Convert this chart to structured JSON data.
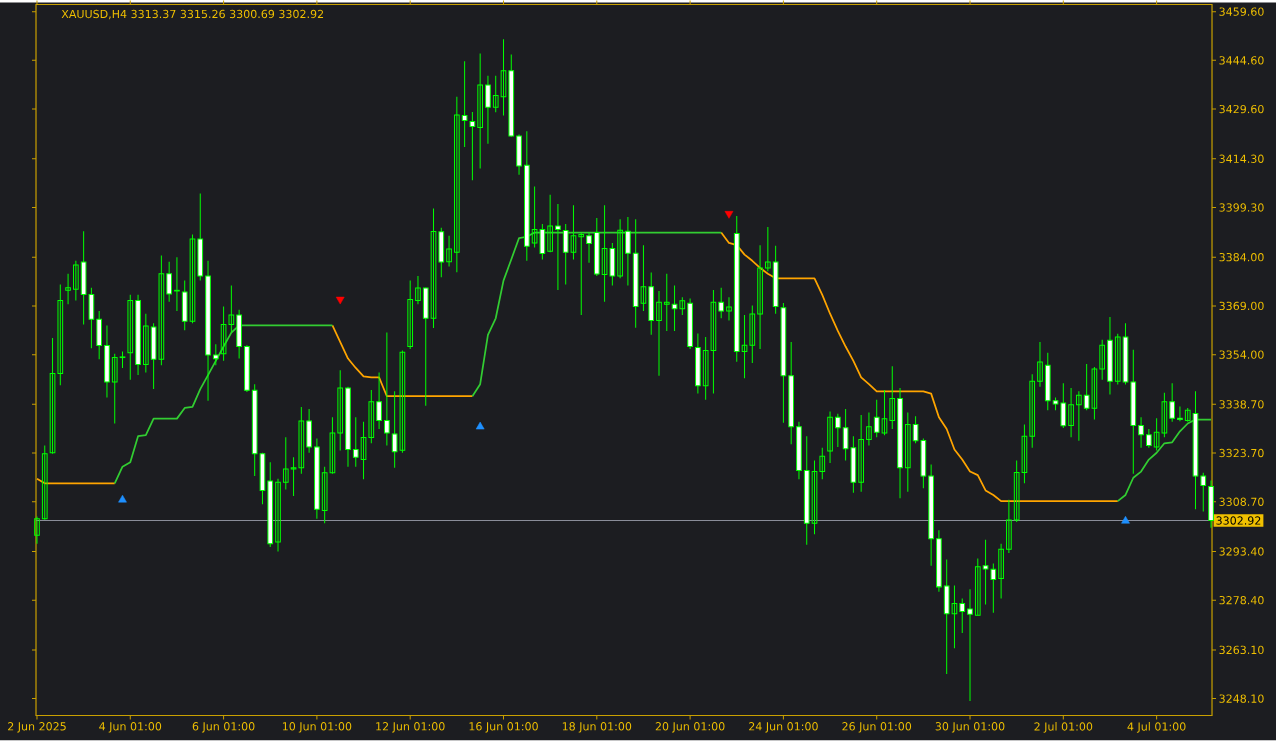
{
  "chart_data": {
    "type": "candlestick",
    "title": "XAUUSD,H4 3313.37 3315.26 3300.69 3302.92",
    "color": "#00ff00",
    "categories": [
      "2 Jun 2025",
      null,
      null,
      null,
      null,
      null,
      null,
      null,
      null,
      null,
      null,
      null,
      "4 Jun 01:00",
      null,
      null,
      null,
      null,
      null,
      null,
      null,
      null,
      null,
      null,
      null,
      "6 Jun 01:00",
      null,
      null,
      null,
      null,
      null,
      null,
      null,
      null,
      null,
      null,
      null,
      "10 Jun 01:00",
      null,
      null,
      null,
      null,
      null,
      null,
      null,
      null,
      null,
      null,
      null,
      "12 Jun 01:00",
      null,
      null,
      null,
      null,
      null,
      null,
      null,
      null,
      null,
      null,
      null,
      "16 Jun 01:00",
      null,
      null,
      null,
      null,
      null,
      null,
      null,
      null,
      null,
      null,
      null,
      "18 Jun 01:00",
      null,
      null,
      null,
      null,
      null,
      null,
      null,
      null,
      null,
      null,
      null,
      "20 Jun 01:00",
      null,
      null,
      null,
      null,
      null,
      null,
      null,
      null,
      null,
      null,
      null,
      "24 Jun 01:00",
      null,
      null,
      null,
      null,
      null,
      null,
      null,
      null,
      null,
      null,
      null,
      "26 Jun 01:00",
      null,
      null,
      null,
      null,
      null,
      null,
      null,
      null,
      null,
      null,
      null,
      "30 Jun 01:00",
      null,
      null,
      null,
      null,
      null,
      null,
      null,
      null,
      null,
      null,
      null,
      "2 Jul 01:00",
      null,
      null,
      null,
      null,
      null,
      null,
      null,
      null,
      null,
      null,
      null,
      "4 Jul 01:00",
      null,
      null,
      null,
      null,
      null,
      null,
      null
    ],
    "ohlc": [
      [
        3298.4,
        3304.2,
        3295.8,
        3303.5
      ],
      [
        3303.5,
        3326.0,
        3303.2,
        3323.5
      ],
      [
        3323.8,
        3359.1,
        3323.5,
        3348.2
      ],
      [
        3348.2,
        3375.6,
        3344.6,
        3370.7
      ],
      [
        3373.8,
        3378.9,
        3369.5,
        3374.6
      ],
      [
        3374.1,
        3382.9,
        3370.7,
        3381.6
      ],
      [
        3382.5,
        3392.0,
        3363.3,
        3372.5
      ],
      [
        3372.5,
        3374.6,
        3356.0,
        3364.9
      ],
      [
        3364.9,
        3367.4,
        3352.6,
        3356.8
      ],
      [
        3356.8,
        3363.0,
        3340.8,
        3345.6
      ],
      [
        3345.6,
        3354.3,
        3332.8,
        3353.1
      ],
      [
        3353.1,
        3355.0,
        3349.9,
        3353.3
      ],
      [
        3354.6,
        3372.4,
        3346.3,
        3370.7
      ],
      [
        3370.7,
        3372.4,
        3347.7,
        3351.0
      ],
      [
        3351.0,
        3366.6,
        3348.5,
        3362.8
      ],
      [
        3362.5,
        3363.7,
        3343.4,
        3352.6
      ],
      [
        3352.6,
        3384.5,
        3350.7,
        3378.9
      ],
      [
        3378.9,
        3382.6,
        3370.3,
        3372.7
      ],
      [
        3373.6,
        3384.0,
        3367.4,
        3373.8
      ],
      [
        3373.3,
        3376.8,
        3361.5,
        3364.3
      ],
      [
        3364.3,
        3391.0,
        3363.7,
        3389.6
      ],
      [
        3389.6,
        3403.6,
        3376.8,
        3378.2
      ],
      [
        3378.2,
        3382.9,
        3339.8,
        3353.9
      ],
      [
        3353.9,
        3357.2,
        3350.7,
        3352.7
      ],
      [
        3354.3,
        3368.8,
        3352.1,
        3363.3
      ],
      [
        3363.3,
        3375.3,
        3360.8,
        3366.2
      ],
      [
        3366.2,
        3367.8,
        3352.8,
        3356.5
      ],
      [
        3356.5,
        3356.9,
        3342.5,
        3343.0
      ],
      [
        3343.0,
        3344.9,
        3316.6,
        3323.5
      ],
      [
        3323.5,
        3323.8,
        3307.9,
        3312.2
      ],
      [
        3315.1,
        3320.9,
        3294.8,
        3295.8
      ],
      [
        3296.3,
        3315.8,
        3293.4,
        3314.7
      ],
      [
        3314.7,
        3328.6,
        3312.5,
        3318.8
      ],
      [
        3318.8,
        3322.4,
        3310.5,
        3319.2
      ],
      [
        3319.2,
        3337.9,
        3317.3,
        3333.6
      ],
      [
        3333.6,
        3337.3,
        3323.8,
        3325.6
      ],
      [
        3325.6,
        3328.2,
        3303.5,
        3306.4
      ],
      [
        3306.0,
        3319.5,
        3302.1,
        3317.6
      ],
      [
        3317.6,
        3334.7,
        3317.3,
        3329.9
      ],
      [
        3329.9,
        3349.2,
        3324.5,
        3343.7
      ],
      [
        3343.7,
        3344.1,
        3319.5,
        3324.8
      ],
      [
        3324.8,
        3334.7,
        3319.5,
        3322.4
      ],
      [
        3321.7,
        3333.3,
        3315.6,
        3328.5
      ],
      [
        3328.5,
        3343.1,
        3326.7,
        3339.5
      ],
      [
        3339.5,
        3348.5,
        3331.1,
        3333.7
      ],
      [
        3333.7,
        3360.8,
        3326.0,
        3329.9
      ],
      [
        3329.6,
        3342.7,
        3319.2,
        3324.1
      ],
      [
        3324.6,
        3355.3,
        3323.8,
        3354.7
      ],
      [
        3356.5,
        3376.8,
        3355.7,
        3371.0
      ],
      [
        3370.7,
        3378.2,
        3369.5,
        3374.5
      ],
      [
        3374.5,
        3374.6,
        3338.3,
        3365.2
      ],
      [
        3365.2,
        3399.0,
        3362.2,
        3391.9
      ],
      [
        3391.8,
        3393.1,
        3377.8,
        3382.5
      ],
      [
        3382.6,
        3390.6,
        3381.1,
        3386.5
      ],
      [
        3385.5,
        3433.4,
        3379.4,
        3427.8
      ],
      [
        3427.6,
        3444.3,
        3417.9,
        3426.1
      ],
      [
        3425.8,
        3428.7,
        3407.7,
        3424.2
      ],
      [
        3423.9,
        3446.7,
        3411.3,
        3437.0
      ],
      [
        3437.0,
        3439.9,
        3418.9,
        3430.2
      ],
      [
        3430.2,
        3439.9,
        3428.6,
        3433.8
      ],
      [
        3433.4,
        3451.1,
        3427.6,
        3441.4
      ],
      [
        3441.4,
        3446.4,
        3421.1,
        3421.3
      ],
      [
        3421.3,
        3421.8,
        3409.4,
        3412.1
      ],
      [
        3412.3,
        3422.8,
        3382.9,
        3387.4
      ],
      [
        3388.4,
        3405.8,
        3387.0,
        3392.5
      ],
      [
        3392.5,
        3394.2,
        3383.3,
        3385.1
      ],
      [
        3385.8,
        3403.2,
        3385.5,
        3393.6
      ],
      [
        3393.6,
        3400.4,
        3373.9,
        3392.5
      ],
      [
        3392.2,
        3394.2,
        3375.6,
        3385.5
      ],
      [
        3385.5,
        3400.0,
        3383.3,
        3390.6
      ],
      [
        3390.3,
        3391.6,
        3366.2,
        3391.0
      ],
      [
        3390.6,
        3391.6,
        3382.3,
        3388.2
      ],
      [
        3391.6,
        3396.1,
        3378.2,
        3378.8
      ],
      [
        3378.7,
        3400.0,
        3370.3,
        3386.7
      ],
      [
        3386.7,
        3388.4,
        3375.3,
        3378.2
      ],
      [
        3378.2,
        3395.7,
        3377.5,
        3392.3
      ],
      [
        3392.0,
        3396.4,
        3375.3,
        3385.2
      ],
      [
        3385.2,
        3395.7,
        3362.3,
        3368.8
      ],
      [
        3369.8,
        3387.7,
        3367.4,
        3374.9
      ],
      [
        3374.9,
        3379.3,
        3360.1,
        3364.5
      ],
      [
        3364.5,
        3373.6,
        3347.5,
        3370.1
      ],
      [
        3369.5,
        3378.9,
        3361.3,
        3370.1
      ],
      [
        3369.5,
        3375.3,
        3361.3,
        3368.1
      ],
      [
        3368.1,
        3371.7,
        3366.2,
        3370.6
      ],
      [
        3369.8,
        3371.3,
        3355.7,
        3356.5
      ],
      [
        3356.2,
        3360.5,
        3342.0,
        3344.4
      ],
      [
        3344.4,
        3359.4,
        3340.1,
        3355.3
      ],
      [
        3355.3,
        3373.9,
        3342.0,
        3370.1
      ],
      [
        3370.1,
        3374.6,
        3365.2,
        3367.4
      ],
      [
        3367.4,
        3371.7,
        3364.5,
        3368.7
      ],
      [
        3391.3,
        3396.7,
        3351.8,
        3355.0
      ],
      [
        3355.0,
        3366.2,
        3346.7,
        3356.9
      ],
      [
        3356.9,
        3369.1,
        3351.4,
        3366.5
      ],
      [
        3366.5,
        3387.7,
        3355.7,
        3380.7
      ],
      [
        3380.7,
        3393.3,
        3379.7,
        3382.5
      ],
      [
        3382.5,
        3387.5,
        3366.6,
        3368.8
      ],
      [
        3368.4,
        3369.9,
        3333.0,
        3347.5
      ],
      [
        3347.5,
        3357.9,
        3326.4,
        3331.8
      ],
      [
        3331.8,
        3333.3,
        3315.6,
        3318.3
      ],
      [
        3318.3,
        3328.9,
        3295.5,
        3302.1
      ],
      [
        3302.1,
        3321.4,
        3298.7,
        3318.0
      ],
      [
        3318.0,
        3325.3,
        3315.6,
        3322.7
      ],
      [
        3324.3,
        3336.5,
        3320.6,
        3334.7
      ],
      [
        3334.7,
        3335.8,
        3325.6,
        3331.5
      ],
      [
        3331.5,
        3337.3,
        3321.4,
        3325.0
      ],
      [
        3325.3,
        3328.9,
        3311.5,
        3314.7
      ],
      [
        3314.7,
        3335.4,
        3311.8,
        3327.9
      ],
      [
        3327.9,
        3336.2,
        3326.0,
        3331.8
      ],
      [
        3334.7,
        3340.1,
        3328.6,
        3330.1
      ],
      [
        3329.9,
        3343.1,
        3329.2,
        3334.3
      ],
      [
        3333.7,
        3350.4,
        3331.1,
        3340.5
      ],
      [
        3340.5,
        3343.7,
        3309.8,
        3319.2
      ],
      [
        3319.2,
        3336.2,
        3311.8,
        3332.5
      ],
      [
        3332.5,
        3335.0,
        3326.7,
        3327.5
      ],
      [
        3327.6,
        3328.2,
        3312.9,
        3316.6
      ],
      [
        3316.6,
        3320.2,
        3289.0,
        3297.3
      ],
      [
        3297.3,
        3299.9,
        3281.0,
        3282.5
      ],
      [
        3282.8,
        3290.9,
        3255.7,
        3274.2
      ],
      [
        3274.2,
        3282.9,
        3263.6,
        3277.4
      ],
      [
        3277.4,
        3278.9,
        3268.3,
        3274.9
      ],
      [
        3275.7,
        3281.8,
        3247.4,
        3274.1
      ],
      [
        3273.8,
        3291.2,
        3273.8,
        3288.7
      ],
      [
        3289.0,
        3297.0,
        3277.1,
        3288.0
      ],
      [
        3287.9,
        3289.7,
        3274.5,
        3284.8
      ],
      [
        3285.1,
        3295.8,
        3278.9,
        3294.1
      ],
      [
        3294.1,
        3309.3,
        3292.9,
        3303.1
      ],
      [
        3303.1,
        3321.4,
        3302.5,
        3317.7
      ],
      [
        3317.7,
        3332.5,
        3314.4,
        3328.9
      ],
      [
        3328.9,
        3348.0,
        3325.3,
        3345.8
      ],
      [
        3345.8,
        3357.9,
        3344.1,
        3351.7
      ],
      [
        3350.7,
        3354.6,
        3336.9,
        3339.8
      ],
      [
        3339.8,
        3340.8,
        3336.9,
        3338.8
      ],
      [
        3339.1,
        3345.2,
        3331.4,
        3332.1
      ],
      [
        3332.2,
        3343.7,
        3328.6,
        3338.6
      ],
      [
        3338.6,
        3342.7,
        3327.5,
        3341.5
      ],
      [
        3341.5,
        3351.1,
        3336.9,
        3337.5
      ],
      [
        3337.5,
        3350.2,
        3334.0,
        3349.6
      ],
      [
        3349.6,
        3358.6,
        3346.3,
        3356.9
      ],
      [
        3358.4,
        3365.6,
        3341.7,
        3345.8
      ],
      [
        3345.8,
        3360.4,
        3344.8,
        3359.4
      ],
      [
        3359.4,
        3363.7,
        3344.8,
        3345.6
      ],
      [
        3345.6,
        3355.5,
        3317.3,
        3332.2
      ],
      [
        3332.2,
        3334.7,
        3325.3,
        3329.3
      ],
      [
        3329.3,
        3331.1,
        3325.3,
        3326.0
      ],
      [
        3325.6,
        3334.4,
        3324.5,
        3330.1
      ],
      [
        3329.9,
        3342.3,
        3328.6,
        3339.5
      ],
      [
        3339.5,
        3345.2,
        3333.3,
        3334.4
      ],
      [
        3334.4,
        3338.0,
        3333.5,
        3334.0
      ],
      [
        3333.7,
        3337.6,
        3333.3,
        3336.9
      ],
      [
        3335.9,
        3342.7,
        3306.4,
        3316.6
      ],
      [
        3316.6,
        3317.6,
        3305.7,
        3313.7
      ],
      [
        3313.37,
        3315.26,
        3300.69,
        3302.92
      ]
    ],
    "series": [
      {
        "type": "line",
        "color": "#ffa500",
        "values": [
          3315.8,
          3314.4,
          3314.4,
          3314.4,
          3314.4,
          3314.4,
          3314.4,
          3314.4,
          3314.4,
          3314.4,
          3314.4,
          null,
          null,
          null,
          null,
          null,
          null,
          null,
          null,
          null,
          null,
          null,
          null,
          null,
          null,
          null,
          null,
          null,
          null,
          null,
          null,
          null,
          null,
          null,
          null,
          null,
          null,
          null,
          3363.0,
          3357.9,
          3352.8,
          3349.9,
          3347.3,
          3347.0,
          3347.0,
          3341.2,
          3341.2,
          3341.2,
          3341.2,
          3341.2,
          3341.2,
          3341.2,
          3341.2,
          3341.2,
          3341.2,
          3341.2,
          3341.2,
          null,
          null,
          null,
          null,
          null,
          null,
          null,
          null,
          null,
          null,
          null,
          null,
          null,
          null,
          null,
          null,
          null,
          null,
          null,
          null,
          null,
          null,
          null,
          null,
          null,
          null,
          null,
          null,
          null,
          null,
          null,
          3391.6,
          3388.4,
          3387.7,
          3384.8,
          3382.9,
          3380.7,
          3378.9,
          3377.5,
          3377.5,
          3377.5,
          3377.5,
          3377.5,
          3377.5,
          3372.4,
          3366.6,
          3361.3,
          3356.5,
          3352.1,
          3347.0,
          3344.9,
          3342.7,
          3342.7,
          3342.7,
          3342.7,
          3342.7,
          3342.7,
          3342.7,
          3342.0,
          3334.7,
          3331.1,
          3324.8,
          3321.7,
          3318.0,
          3316.9,
          3312.2,
          3310.8,
          3308.9,
          3308.9,
          3308.9,
          3308.9,
          3308.9,
          3308.9,
          3308.9,
          3308.9,
          3308.9,
          3308.9,
          3308.9,
          3308.9,
          3308.9,
          3308.9,
          3308.9,
          3308.9,
          null,
          null,
          null,
          null,
          null,
          null,
          null,
          null,
          null,
          null,
          null,
          null
        ]
      },
      {
        "type": "line",
        "color": "#32cd32",
        "values": [
          null,
          null,
          null,
          null,
          null,
          null,
          null,
          null,
          null,
          null,
          3314.4,
          3319.5,
          3320.9,
          3328.9,
          3329.2,
          3334.3,
          3334.3,
          3334.3,
          3334.3,
          3337.6,
          3337.9,
          3343.4,
          3347.7,
          3352.1,
          3356.5,
          3360.8,
          3363.0,
          3363.0,
          3363.0,
          3363.0,
          3363.0,
          3363.0,
          3363.0,
          3363.0,
          3363.0,
          3363.0,
          3363.0,
          3363.0,
          3363.0,
          null,
          null,
          null,
          null,
          null,
          null,
          null,
          null,
          null,
          null,
          null,
          null,
          null,
          null,
          null,
          null,
          null,
          3341.2,
          3344.9,
          3360.1,
          3365.2,
          3376.8,
          3383.3,
          3389.9,
          3390.3,
          3391.6,
          3391.6,
          3391.6,
          3391.6,
          3391.6,
          3391.6,
          3391.6,
          3391.6,
          3391.6,
          3391.6,
          3391.6,
          3391.6,
          3391.6,
          3391.6,
          3391.6,
          3391.6,
          3391.6,
          3391.6,
          3391.6,
          3391.6,
          3391.6,
          3391.6,
          3391.6,
          3391.6,
          3391.6,
          null,
          null,
          null,
          null,
          null,
          null,
          null,
          null,
          null,
          null,
          null,
          null,
          null,
          null,
          null,
          null,
          null,
          null,
          null,
          null,
          null,
          null,
          null,
          null,
          null,
          null,
          null,
          null,
          null,
          null,
          null,
          null,
          null,
          null,
          null,
          null,
          null,
          null,
          null,
          null,
          null,
          null,
          null,
          null,
          null,
          null,
          null,
          null,
          null,
          null,
          3308.9,
          3310.8,
          3316.1,
          3318.0,
          3321.7,
          3323.8,
          3326.7,
          3327.0,
          3330.4,
          3332.8,
          3334.0,
          3334.0,
          3334.0
        ]
      },
      {
        "type": "scatter",
        "color": "#1e90ff",
        "marker": "triangle",
        "values": [
          null,
          null,
          null,
          null,
          null,
          null,
          null,
          null,
          null,
          null,
          null,
          3309.3,
          null,
          null,
          null,
          null,
          null,
          null,
          null,
          null,
          null,
          null,
          null,
          null,
          null,
          null,
          null,
          null,
          null,
          null,
          null,
          null,
          null,
          null,
          null,
          null,
          null,
          null,
          null,
          null,
          null,
          null,
          null,
          null,
          null,
          null,
          null,
          null,
          null,
          null,
          null,
          null,
          null,
          null,
          null,
          null,
          null,
          3331.8,
          null,
          null,
          null,
          null,
          null,
          null,
          null,
          null,
          null,
          null,
          null,
          null,
          null,
          null,
          null,
          null,
          null,
          null,
          null,
          null,
          null,
          null,
          null,
          null,
          null,
          null,
          null,
          null,
          null,
          null,
          null,
          null,
          null,
          null,
          null,
          null,
          null,
          null,
          null,
          null,
          null,
          null,
          null,
          null,
          null,
          null,
          null,
          null,
          null,
          null,
          null,
          null,
          null,
          null,
          null,
          null,
          null,
          null,
          null,
          null,
          null,
          null,
          null,
          null,
          null,
          null,
          null,
          null,
          null,
          null,
          null,
          null,
          null,
          null,
          null,
          null,
          null,
          null,
          null,
          null,
          null,
          null,
          3302.8,
          null,
          null,
          null,
          null,
          null,
          null,
          null,
          null,
          null,
          null,
          null
        ]
      },
      {
        "type": "scatter",
        "color": "#ff0000",
        "marker": "triangle",
        "values": [
          null,
          null,
          null,
          null,
          null,
          null,
          null,
          null,
          null,
          null,
          null,
          null,
          null,
          null,
          null,
          null,
          null,
          null,
          null,
          null,
          null,
          null,
          null,
          null,
          null,
          null,
          null,
          null,
          null,
          null,
          null,
          null,
          null,
          null,
          null,
          null,
          null,
          null,
          null,
          3371.0,
          null,
          null,
          null,
          null,
          null,
          null,
          null,
          null,
          null,
          null,
          null,
          null,
          null,
          null,
          null,
          null,
          null,
          null,
          null,
          null,
          null,
          null,
          null,
          null,
          null,
          null,
          null,
          null,
          null,
          null,
          null,
          null,
          null,
          null,
          null,
          null,
          null,
          null,
          null,
          null,
          null,
          null,
          null,
          null,
          null,
          null,
          null,
          null,
          null,
          3397.4,
          null,
          null,
          null,
          null,
          null,
          null,
          null,
          null,
          null,
          null,
          null,
          null,
          null,
          null,
          null,
          null,
          null,
          null,
          null,
          null,
          null,
          null,
          null,
          null,
          null,
          null,
          null,
          null,
          null,
          null,
          null,
          null,
          null,
          null,
          null,
          null,
          null,
          null,
          null,
          null,
          null,
          null,
          null,
          null,
          null,
          null,
          null,
          null,
          null,
          null,
          null,
          null,
          null,
          null,
          null,
          null,
          null,
          null,
          null,
          null,
          null,
          null
        ]
      }
    ],
    "ylim": [
      3242.9,
      3461.8
    ],
    "yticks": [
      {
        "value": 3459.6,
        "label": "3459.60"
      },
      {
        "value": 3444.6,
        "label": "3444.60"
      },
      {
        "value": 3429.6,
        "label": "3429.60"
      },
      {
        "value": 3414.3,
        "label": "3414.30"
      },
      {
        "value": 3399.3,
        "label": "3399.30"
      },
      {
        "value": 3384.0,
        "label": "3384.00"
      },
      {
        "value": 3369.0,
        "label": "3369.00"
      },
      {
        "value": 3354.0,
        "label": "3354.00"
      },
      {
        "value": 3338.7,
        "label": "3338.70"
      },
      {
        "value": 3323.7,
        "label": "3323.70"
      },
      {
        "value": 3308.7,
        "label": "3308.70"
      },
      {
        "value": 3293.4,
        "label": "3293.40"
      },
      {
        "value": 3278.4,
        "label": "3278.40"
      },
      {
        "value": 3263.1,
        "label": "3263.10"
      },
      {
        "value": 3248.1,
        "label": "3248.10"
      }
    ],
    "ref_lines": [
      {
        "axis": "y",
        "value": 3302.92,
        "label": "3302.92",
        "color": "#8a8d99"
      }
    ]
  }
}
